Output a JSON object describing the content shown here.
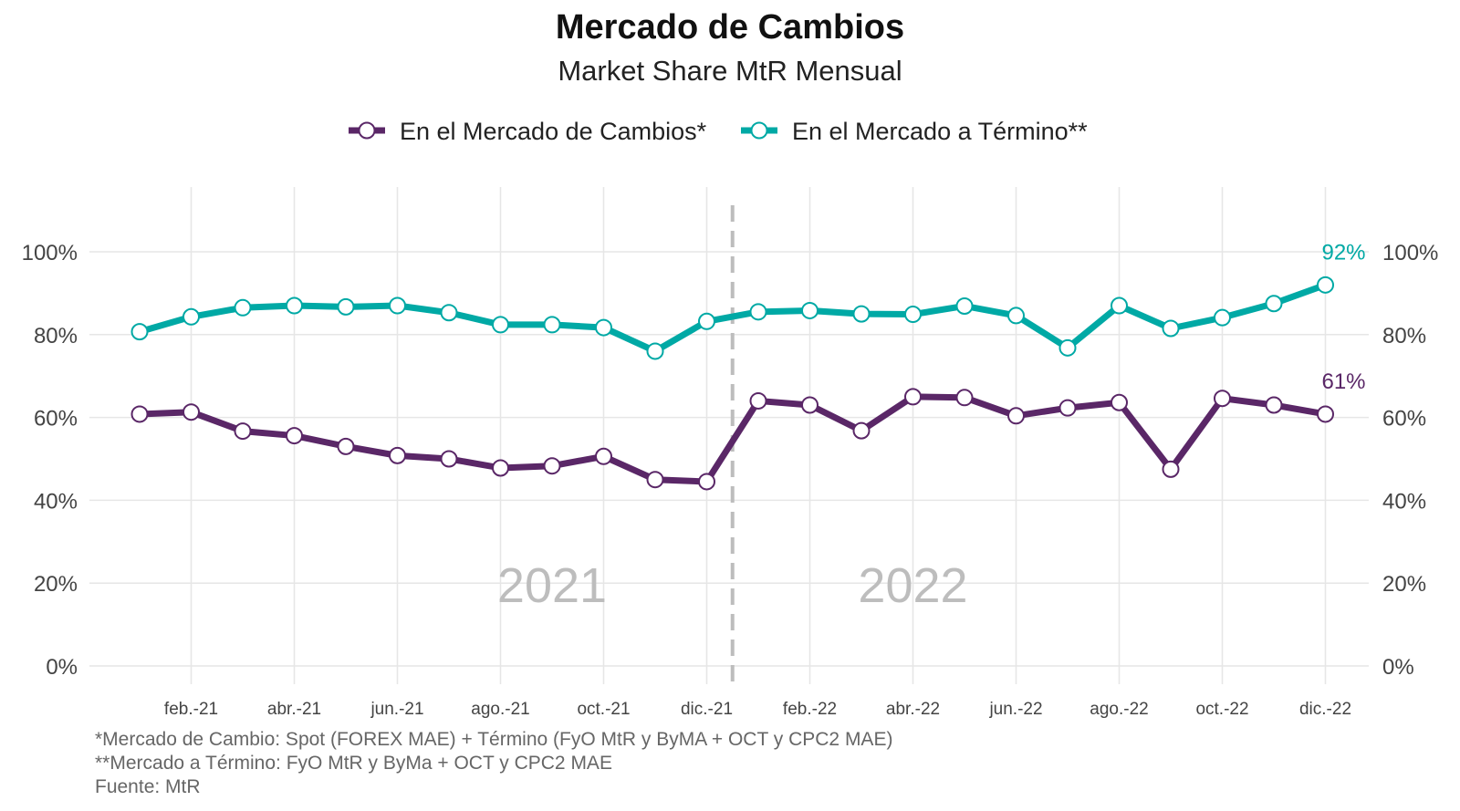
{
  "chart_data": {
    "type": "line",
    "title": "Mercado de Cambios",
    "subtitle": "Market Share MtR Mensual",
    "legend_position": "top",
    "grid": true,
    "ylim": [
      0,
      110
    ],
    "y_ticks": [
      "0%",
      "20%",
      "40%",
      "60%",
      "80%",
      "100%"
    ],
    "y_tick_values": [
      0,
      20,
      40,
      60,
      80,
      100
    ],
    "x_tick_labels": [
      "feb.-21",
      "abr.-21",
      "jun.-21",
      "ago.-21",
      "oct.-21",
      "dic.-21",
      "feb.-22",
      "abr.-22",
      "jun.-22",
      "ago.-22",
      "oct.-22",
      "dic.-22"
    ],
    "year_labels": [
      "2021",
      "2022"
    ],
    "categories": [
      "ene.-21",
      "feb.-21",
      "mar.-21",
      "abr.-21",
      "may.-21",
      "jun.-21",
      "jul.-21",
      "ago.-21",
      "sep.-21",
      "oct.-21",
      "nov.-21",
      "dic.-21",
      "ene.-22",
      "feb.-22",
      "mar.-22",
      "abr.-22",
      "may.-22",
      "jun.-22",
      "jul.-22",
      "ago.-22",
      "sep.-22",
      "oct.-22",
      "nov.-22",
      "dic.-22"
    ],
    "series": [
      {
        "name": "En el Mercado de Cambios*",
        "color": "#5a2767",
        "end_label": "61%",
        "values": [
          60.8,
          61.3,
          56.7,
          55.6,
          53.0,
          50.8,
          50.0,
          47.8,
          48.3,
          50.6,
          45.0,
          44.5,
          64.0,
          63.0,
          56.8,
          65.0,
          64.8,
          60.4,
          62.3,
          63.6,
          47.5,
          64.6,
          63.0,
          60.8
        ]
      },
      {
        "name": "En el Mercado a Término**",
        "color": "#00a9a5",
        "end_label": "92%",
        "values": [
          80.7,
          84.3,
          86.5,
          87.0,
          86.7,
          87.0,
          85.3,
          82.4,
          82.4,
          81.7,
          76.0,
          83.2,
          85.5,
          85.8,
          85.0,
          84.9,
          86.9,
          84.6,
          76.8,
          87.0,
          81.5,
          84.1,
          87.5,
          92.0
        ]
      }
    ]
  },
  "footnotes": [
    "*Mercado de Cambio: Spot (FOREX MAE) + Término (FyO MtR y ByMA + OCT y CPC2 MAE)",
    "**Mercado a Término: FyO MtR y ByMa + OCT y CPC2 MAE",
    "Fuente: MtR"
  ]
}
